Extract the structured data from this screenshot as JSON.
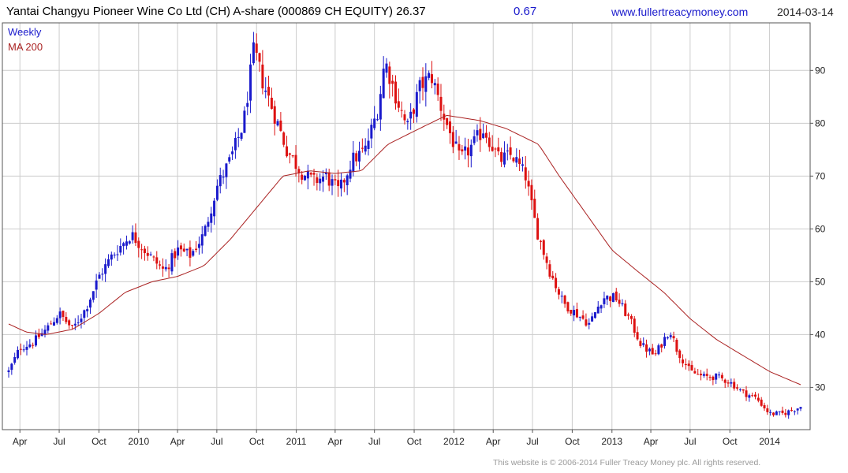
{
  "header": {
    "title": "Yantai Changyu Pioneer Wine Co Ltd (CH) A-share (000869 CH EQUITY) 26.37",
    "change": "0.67",
    "website": "www.fullertreacymoney.com",
    "date": "2014-03-14"
  },
  "footer": {
    "copyright": "This website is © 2006-2014 Fuller Treacy Money plc. All rights reserved."
  },
  "colors": {
    "up_candle": "#1a1acc",
    "down_candle": "#dd1111",
    "ma_line": "#aa2222",
    "grid": "#cccccc",
    "frame": "#555555",
    "change_text": "#1a1acc",
    "website_text": "#1a1acc"
  },
  "chart_data": {
    "type": "candlestick",
    "title": "",
    "xlabel": "",
    "ylabel": "",
    "frequency": "Weekly",
    "ylim": [
      22,
      99
    ],
    "yticks": [
      30,
      40,
      50,
      60,
      70,
      80,
      90
    ],
    "xticks": [
      {
        "date": "2009-04-01",
        "label": "Apr"
      },
      {
        "date": "2009-07-01",
        "label": "Jul"
      },
      {
        "date": "2009-10-01",
        "label": "Oct"
      },
      {
        "date": "2010-01-01",
        "label": "2010"
      },
      {
        "date": "2010-04-01",
        "label": "Apr"
      },
      {
        "date": "2010-07-01",
        "label": "Jul"
      },
      {
        "date": "2010-10-01",
        "label": "Oct"
      },
      {
        "date": "2011-01-01",
        "label": "2011"
      },
      {
        "date": "2011-04-01",
        "label": "Apr"
      },
      {
        "date": "2011-07-01",
        "label": "Jul"
      },
      {
        "date": "2011-10-01",
        "label": "Oct"
      },
      {
        "date": "2012-01-01",
        "label": "2012"
      },
      {
        "date": "2012-04-01",
        "label": "Apr"
      },
      {
        "date": "2012-07-01",
        "label": "Jul"
      },
      {
        "date": "2012-10-01",
        "label": "Oct"
      },
      {
        "date": "2013-01-01",
        "label": "2013"
      },
      {
        "date": "2013-04-01",
        "label": "Apr"
      },
      {
        "date": "2013-07-01",
        "label": "Jul"
      },
      {
        "date": "2013-10-01",
        "label": "Oct"
      },
      {
        "date": "2014-01-01",
        "label": "2014"
      }
    ],
    "grid": true,
    "legend": {
      "position": "top-left",
      "entries": [
        {
          "label": "Weekly",
          "color": "#1a1acc"
        },
        {
          "label": "MA 200",
          "color": "#aa2222"
        }
      ]
    },
    "price_path": {
      "start": "2009-03-06",
      "end": "2014-03-14",
      "points": [
        [
          "2009-03-06",
          33
        ],
        [
          "2009-04-01",
          37.5
        ],
        [
          "2009-05-01",
          38.5
        ],
        [
          "2009-06-01",
          41
        ],
        [
          "2009-07-01",
          44
        ],
        [
          "2009-08-01",
          41
        ],
        [
          "2009-09-01",
          45
        ],
        [
          "2009-10-01",
          51
        ],
        [
          "2009-11-01",
          55
        ],
        [
          "2009-12-15",
          59
        ],
        [
          "2010-01-15",
          56
        ],
        [
          "2010-03-01",
          52
        ],
        [
          "2010-04-01",
          56
        ],
        [
          "2010-05-01",
          55
        ],
        [
          "2010-06-01",
          59
        ],
        [
          "2010-07-01",
          68
        ],
        [
          "2010-08-01",
          73
        ],
        [
          "2010-09-01",
          80
        ],
        [
          "2010-09-25",
          94
        ],
        [
          "2010-10-15",
          88
        ],
        [
          "2010-11-10",
          82
        ],
        [
          "2010-12-10",
          75
        ],
        [
          "2011-01-10",
          71
        ],
        [
          "2011-02-10",
          69
        ],
        [
          "2011-03-10",
          70
        ],
        [
          "2011-04-10",
          67
        ],
        [
          "2011-05-10",
          73
        ],
        [
          "2011-06-10",
          75
        ],
        [
          "2011-07-10",
          83
        ],
        [
          "2011-07-25",
          92
        ],
        [
          "2011-08-20",
          85
        ],
        [
          "2011-09-15",
          79
        ],
        [
          "2011-10-15",
          87
        ],
        [
          "2011-11-10",
          89
        ],
        [
          "2011-12-10",
          81
        ],
        [
          "2012-01-15",
          73
        ],
        [
          "2012-02-15",
          76
        ],
        [
          "2012-03-10",
          79
        ],
        [
          "2012-04-15",
          73
        ],
        [
          "2012-05-15",
          74
        ],
        [
          "2012-06-15",
          70
        ],
        [
          "2012-07-10",
          60
        ],
        [
          "2012-08-10",
          52
        ],
        [
          "2012-09-10",
          46
        ],
        [
          "2012-10-10",
          44
        ],
        [
          "2012-11-10",
          42
        ],
        [
          "2012-12-10",
          47
        ],
        [
          "2013-01-10",
          47
        ],
        [
          "2013-02-10",
          43
        ],
        [
          "2013-03-10",
          38
        ],
        [
          "2013-04-10",
          36
        ],
        [
          "2013-05-15",
          41
        ],
        [
          "2013-06-01",
          37
        ],
        [
          "2013-07-01",
          33
        ],
        [
          "2013-08-01",
          32
        ],
        [
          "2013-09-01",
          32
        ],
        [
          "2013-10-01",
          31
        ],
        [
          "2013-11-01",
          29
        ],
        [
          "2013-12-01",
          28
        ],
        [
          "2014-01-01",
          25
        ],
        [
          "2014-02-01",
          25
        ],
        [
          "2014-03-14",
          26.37
        ]
      ]
    },
    "ma200": {
      "name": "MA 200",
      "points": [
        [
          "2009-03-06",
          42
        ],
        [
          "2009-04-15",
          40.5
        ],
        [
          "2009-06-01",
          40
        ],
        [
          "2009-08-01",
          41
        ],
        [
          "2009-10-01",
          44
        ],
        [
          "2009-12-01",
          48
        ],
        [
          "2010-02-01",
          50
        ],
        [
          "2010-04-01",
          51
        ],
        [
          "2010-06-01",
          53
        ],
        [
          "2010-08-01",
          58
        ],
        [
          "2010-10-01",
          64
        ],
        [
          "2010-12-01",
          70
        ],
        [
          "2011-02-01",
          71
        ],
        [
          "2011-04-01",
          70.5
        ],
        [
          "2011-06-01",
          71
        ],
        [
          "2011-08-01",
          76
        ],
        [
          "2011-10-01",
          78.5
        ],
        [
          "2011-12-15",
          81.5
        ],
        [
          "2012-03-01",
          80.5
        ],
        [
          "2012-05-01",
          79
        ],
        [
          "2012-07-15",
          76
        ],
        [
          "2012-09-01",
          70
        ],
        [
          "2012-11-01",
          63
        ],
        [
          "2013-01-01",
          56
        ],
        [
          "2013-03-01",
          52
        ],
        [
          "2013-05-01",
          48
        ],
        [
          "2013-07-01",
          43
        ],
        [
          "2013-09-01",
          39
        ],
        [
          "2013-11-01",
          36
        ],
        [
          "2014-01-01",
          33
        ],
        [
          "2014-03-14",
          30.5
        ]
      ]
    }
  }
}
